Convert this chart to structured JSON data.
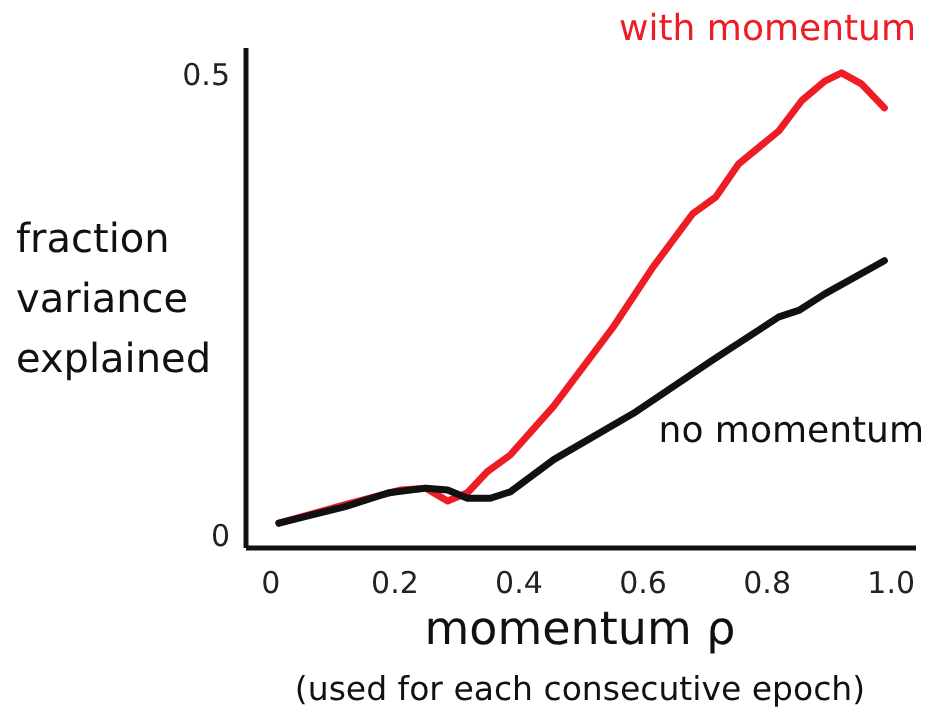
{
  "chart_data": {
    "type": "line",
    "xlabel": "momentum ρ",
    "ylabel": "fraction variance explained",
    "annotations": [
      "(used for each consecutive epoch)"
    ],
    "xlim": [
      -0.04,
      1.04
    ],
    "ylim": [
      -0.013,
      0.53
    ],
    "xticks": [
      0,
      0.2,
      0.4,
      0.6,
      0.8,
      {
        "value": 1,
        "label": "1.0"
      }
    ],
    "yticks": [
      0,
      0.5
    ],
    "grid": false,
    "legend": false,
    "marker": "none",
    "line_style": "solid",
    "series": [
      {
        "name": "with momentum",
        "color": "#ee1c25",
        "x": [
          0.013,
          0.12,
          0.21,
          0.25,
          0.285,
          0.317,
          0.349,
          0.386,
          0.456,
          0.552,
          0.616,
          0.68,
          0.717,
          0.754,
          0.819,
          0.856,
          0.893,
          0.92,
          0.952,
          0.989
        ],
        "values": [
          0.014,
          0.034,
          0.05,
          0.052,
          0.038,
          0.047,
          0.07,
          0.088,
          0.141,
          0.227,
          0.292,
          0.35,
          0.368,
          0.404,
          0.44,
          0.473,
          0.494,
          0.503,
          0.491,
          0.465
        ]
      },
      {
        "name": "no momentum",
        "color": "#111111",
        "x": [
          0.013,
          0.12,
          0.19,
          0.25,
          0.285,
          0.317,
          0.354,
          0.386,
          0.456,
          0.584,
          0.712,
          0.819,
          0.851,
          0.893,
          0.989
        ],
        "values": [
          0.014,
          0.032,
          0.047,
          0.052,
          0.05,
          0.041,
          0.041,
          0.048,
          0.083,
          0.133,
          0.191,
          0.238,
          0.245,
          0.263,
          0.299
        ]
      }
    ]
  }
}
